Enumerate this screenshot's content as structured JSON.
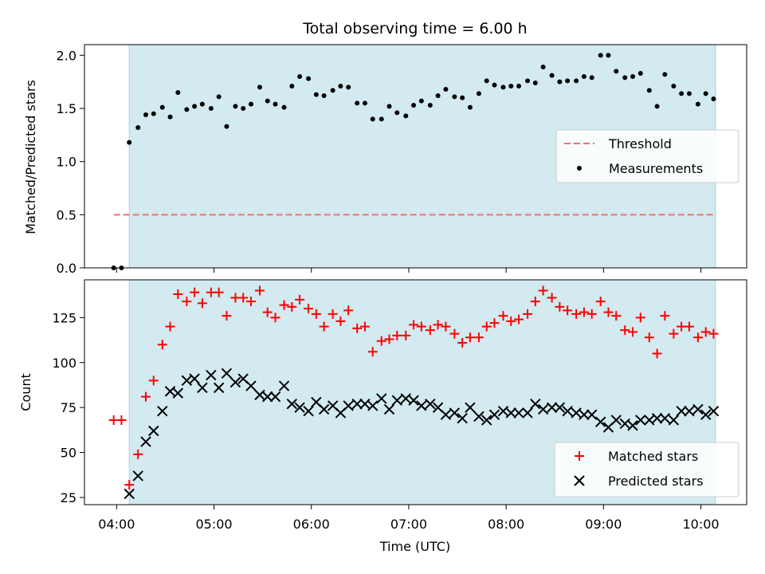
{
  "chart_data": {
    "title": "Total observing time = 6.00 h",
    "x_tick_labels": [
      "04:00",
      "05:00",
      "06:00",
      "07:00",
      "08:00",
      "09:00",
      "10:00"
    ],
    "xlabel": "Time (UTC)",
    "xlim_hours": [
      3.67,
      10.47
    ],
    "observing_window_hours": [
      4.13,
      10.15
    ],
    "shade_color": "#d2eaf0",
    "grid": false,
    "panels": [
      {
        "type": "scatter",
        "ylabel": "Matched/Predicted stars",
        "ylim": [
          0,
          2.1
        ],
        "y_ticks": [
          0.0,
          0.5,
          1.0,
          1.5,
          2.0
        ],
        "y_tick_labels": [
          "0.0",
          "0.5",
          "1.0",
          "1.5",
          "2.0"
        ],
        "legend_position": "center-right",
        "threshold": {
          "name": "Threshold",
          "value": 0.5,
          "x_range": [
            3.97,
            10.15
          ],
          "color": "#f07070",
          "style": "dashed"
        },
        "series": [
          {
            "name": "Measurements",
            "marker": "dot",
            "color": "#000000",
            "x": [
              3.97,
              4.05,
              4.13,
              4.22,
              4.3,
              4.38,
              4.47,
              4.55,
              4.63,
              4.72,
              4.8,
              4.88,
              4.97,
              5.05,
              5.13,
              5.22,
              5.3,
              5.38,
              5.47,
              5.55,
              5.63,
              5.72,
              5.8,
              5.88,
              5.97,
              6.05,
              6.13,
              6.22,
              6.3,
              6.38,
              6.47,
              6.55,
              6.63,
              6.72,
              6.8,
              6.88,
              6.97,
              7.05,
              7.13,
              7.22,
              7.3,
              7.38,
              7.47,
              7.55,
              7.63,
              7.72,
              7.8,
              7.88,
              7.97,
              8.05,
              8.13,
              8.22,
              8.3,
              8.38,
              8.47,
              8.55,
              8.63,
              8.72,
              8.8,
              8.88,
              8.97,
              9.05,
              9.13,
              9.22,
              9.3,
              9.38,
              9.47,
              9.55,
              9.63,
              9.72,
              9.8,
              9.88,
              9.97,
              10.05,
              10.13
            ],
            "y": [
              0.0,
              0.0,
              1.18,
              1.32,
              1.44,
              1.45,
              1.51,
              1.42,
              1.65,
              1.49,
              1.52,
              1.54,
              1.5,
              1.61,
              1.33,
              1.52,
              1.5,
              1.54,
              1.7,
              1.57,
              1.54,
              1.51,
              1.71,
              1.8,
              1.78,
              1.63,
              1.62,
              1.67,
              1.71,
              1.7,
              1.55,
              1.55,
              1.4,
              1.4,
              1.52,
              1.46,
              1.43,
              1.53,
              1.57,
              1.53,
              1.62,
              1.68,
              1.61,
              1.6,
              1.51,
              1.64,
              1.76,
              1.72,
              1.7,
              1.71,
              1.71,
              1.76,
              1.74,
              1.89,
              1.81,
              1.75,
              1.76,
              1.76,
              1.8,
              1.79,
              2.0,
              2.0,
              1.85,
              1.79,
              1.8,
              1.83,
              1.67,
              1.52,
              1.82,
              1.71,
              1.64,
              1.64,
              1.54,
              1.64,
              1.59
            ]
          }
        ]
      },
      {
        "type": "scatter",
        "ylabel": "Count",
        "ylim": [
          21,
          146
        ],
        "y_ticks": [
          25,
          50,
          75,
          100,
          125
        ],
        "y_tick_labels": [
          "25",
          "50",
          "75",
          "100",
          "125"
        ],
        "legend_position": "lower-right",
        "series": [
          {
            "name": "Matched stars",
            "marker": "plus",
            "color": "#ff0000",
            "x": [
              3.97,
              4.05,
              4.13,
              4.22,
              4.3,
              4.38,
              4.47,
              4.55,
              4.63,
              4.72,
              4.8,
              4.88,
              4.97,
              5.05,
              5.13,
              5.22,
              5.3,
              5.38,
              5.47,
              5.55,
              5.63,
              5.72,
              5.8,
              5.88,
              5.97,
              6.05,
              6.13,
              6.22,
              6.3,
              6.38,
              6.47,
              6.55,
              6.63,
              6.72,
              6.8,
              6.88,
              6.97,
              7.05,
              7.13,
              7.22,
              7.3,
              7.38,
              7.47,
              7.55,
              7.63,
              7.72,
              7.8,
              7.88,
              7.97,
              8.05,
              8.13,
              8.22,
              8.3,
              8.38,
              8.47,
              8.55,
              8.63,
              8.72,
              8.8,
              8.88,
              8.97,
              9.05,
              9.13,
              9.22,
              9.3,
              9.38,
              9.47,
              9.55,
              9.63,
              9.72,
              9.8,
              9.88,
              9.97,
              10.05,
              10.13
            ],
            "y": [
              68,
              68,
              32,
              49,
              81,
              90,
              110,
              120,
              138,
              134,
              139,
              133,
              139,
              139,
              126,
              136,
              136,
              134,
              140,
              128,
              125,
              132,
              131,
              135,
              130,
              127,
              120,
              127,
              123,
              129,
              119,
              120,
              106,
              112,
              113,
              115,
              115,
              121,
              120,
              118,
              121,
              120,
              116,
              111,
              114,
              114,
              120,
              122,
              126,
              123,
              124,
              127,
              134,
              140,
              136,
              131,
              129,
              127,
              128,
              127,
              134,
              128,
              126,
              118,
              117,
              125,
              114,
              105,
              126,
              116,
              120,
              120,
              114,
              117,
              116
            ]
          },
          {
            "name": "Predicted stars",
            "marker": "x",
            "color": "#000000",
            "x": [
              4.13,
              4.22,
              4.3,
              4.38,
              4.47,
              4.55,
              4.63,
              4.72,
              4.8,
              4.88,
              4.97,
              5.05,
              5.13,
              5.22,
              5.3,
              5.38,
              5.47,
              5.55,
              5.63,
              5.72,
              5.8,
              5.88,
              5.97,
              6.05,
              6.13,
              6.22,
              6.3,
              6.38,
              6.47,
              6.55,
              6.63,
              6.72,
              6.8,
              6.88,
              6.97,
              7.05,
              7.13,
              7.22,
              7.3,
              7.38,
              7.47,
              7.55,
              7.63,
              7.72,
              7.8,
              7.88,
              7.97,
              8.05,
              8.13,
              8.22,
              8.3,
              8.38,
              8.47,
              8.55,
              8.63,
              8.72,
              8.8,
              8.88,
              8.97,
              9.05,
              9.13,
              9.22,
              9.3,
              9.38,
              9.47,
              9.55,
              9.63,
              9.72,
              9.8,
              9.88,
              9.97,
              10.05,
              10.13
            ],
            "y": [
              27,
              37,
              56,
              62,
              73,
              84,
              83,
              90,
              91,
              86,
              93,
              86,
              94,
              89,
              91,
              87,
              82,
              81,
              81,
              87,
              77,
              75,
              73,
              78,
              74,
              76,
              72,
              76,
              77,
              77,
              76,
              80,
              74,
              79,
              80,
              79,
              76,
              77,
              75,
              71,
              72,
              69,
              75,
              70,
              68,
              71,
              73,
              72,
              72,
              72,
              77,
              74,
              75,
              75,
              73,
              72,
              71,
              71,
              67,
              64,
              68,
              66,
              65,
              68,
              68,
              69,
              69,
              68,
              73,
              73,
              74,
              71,
              73
            ]
          }
        ]
      }
    ]
  }
}
